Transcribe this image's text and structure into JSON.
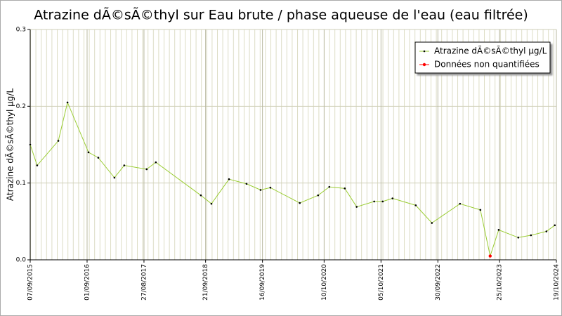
{
  "chart_data": {
    "type": "line",
    "title": "Atrazine dÃ©sÃ©thyl sur Eau brute / phase aqueuse de l'eau (eau filtrée)",
    "y_label": "Atrazine dÃ©sÃ©thyl µg/L",
    "x": [
      "07/09/2015",
      "21/10/2015",
      "03/03/2016",
      "30/04/2016",
      "10/09/2016",
      "11/11/2016",
      "21/02/2017",
      "24/04/2017",
      "13/09/2017",
      "10/11/2017",
      "22/08/2018",
      "28/10/2018",
      "16/02/2019",
      "07/06/2019",
      "04/09/2019",
      "05/11/2019",
      "09/05/2020",
      "02/09/2020",
      "12/11/2020",
      "18/02/2021",
      "04/05/2021",
      "23/08/2021",
      "16/10/2021",
      "17/12/2021",
      "13/05/2022",
      "23/08/2022",
      "17/02/2023",
      "26/06/2023",
      "27/08/2023",
      "20/10/2023",
      "21/02/2024",
      "11/05/2024",
      "17/08/2024",
      "09/10/2024"
    ],
    "series": [
      {
        "name": "Atrazine dÃ©sÃ©thyl µg/L",
        "color": "#9acd32",
        "marker_color": "#000000",
        "values": [
          0.15,
          0.123,
          0.155,
          0.205,
          0.14,
          0.133,
          0.107,
          0.123,
          0.118,
          0.127,
          0.084,
          0.073,
          0.105,
          0.099,
          0.091,
          0.094,
          0.074,
          0.084,
          0.095,
          0.093,
          0.069,
          0.076,
          0.076,
          0.08,
          0.071,
          0.048,
          0.073,
          0.065,
          0.005,
          0.039,
          0.029,
          0.032,
          0.037,
          0.045
        ]
      },
      {
        "name": "Données non quantifiées",
        "color": "#ff0000",
        "marker_color": "#ff0000",
        "values": [
          null,
          null,
          null,
          null,
          null,
          null,
          null,
          null,
          null,
          null,
          null,
          null,
          null,
          null,
          null,
          null,
          null,
          null,
          null,
          null,
          null,
          null,
          null,
          null,
          null,
          null,
          null,
          null,
          0.005,
          null,
          null,
          null,
          null,
          null
        ]
      }
    ],
    "xlim": [
      "07/09/2015",
      "19/10/2024"
    ],
    "xticks": [
      "07/09/2015",
      "01/09/2016",
      "27/08/2017",
      "21/09/2018",
      "16/09/2019",
      "10/10/2020",
      "05/10/2021",
      "30/09/2022",
      "25/10/2023",
      "19/10/2024"
    ],
    "ylim": [
      0,
      0.3
    ],
    "yticks": [
      {
        "value": 0,
        "label": "0.0"
      },
      0.1,
      0.2,
      0.3
    ],
    "grid": true,
    "legend": "upper right"
  }
}
